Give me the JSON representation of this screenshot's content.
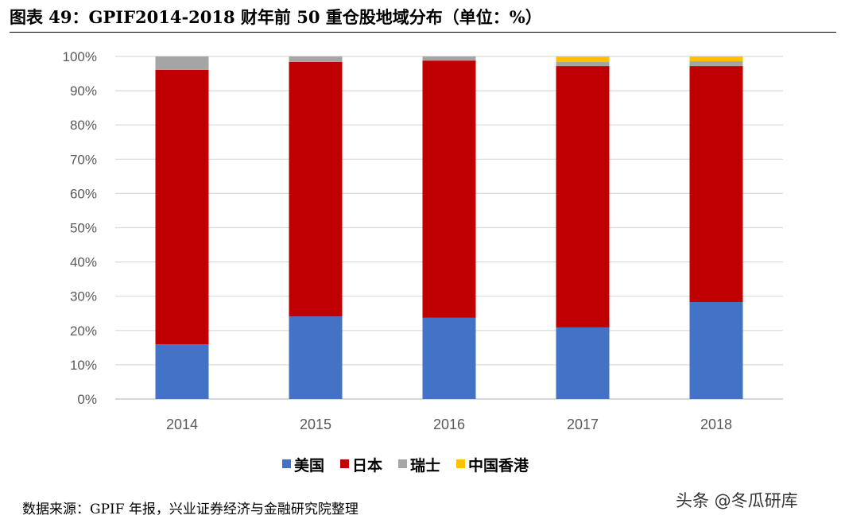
{
  "title": "图表 49：GPIF2014-2018 财年前 50 重仓股地域分布（单位：%）",
  "source": "数据来源：GPIF 年报，兴业证券经济与金融研究院整理",
  "watermark": "头条 @冬瓜研库",
  "chart_data": {
    "type": "bar",
    "stacked": true,
    "percent": true,
    "categories": [
      "2014",
      "2015",
      "2016",
      "2017",
      "2018"
    ],
    "series": [
      {
        "name": "美国",
        "color": "#4472C4",
        "values": [
          16.0,
          24.1,
          23.7,
          20.9,
          28.3
        ]
      },
      {
        "name": "日本",
        "color": "#C00000",
        "values": [
          80.1,
          74.3,
          75.1,
          76.3,
          68.9
        ]
      },
      {
        "name": "瑞士",
        "color": "#A5A5A5",
        "values": [
          3.9,
          1.6,
          1.2,
          1.2,
          1.4
        ]
      },
      {
        "name": "中国香港",
        "color": "#FFC000",
        "values": [
          0,
          0,
          0,
          1.6,
          1.4
        ]
      }
    ],
    "yticks": [
      "0%",
      "10%",
      "20%",
      "30%",
      "40%",
      "50%",
      "60%",
      "70%",
      "80%",
      "90%",
      "100%"
    ],
    "ylim": [
      0,
      100
    ],
    "grid": true,
    "legend": "bottom"
  }
}
